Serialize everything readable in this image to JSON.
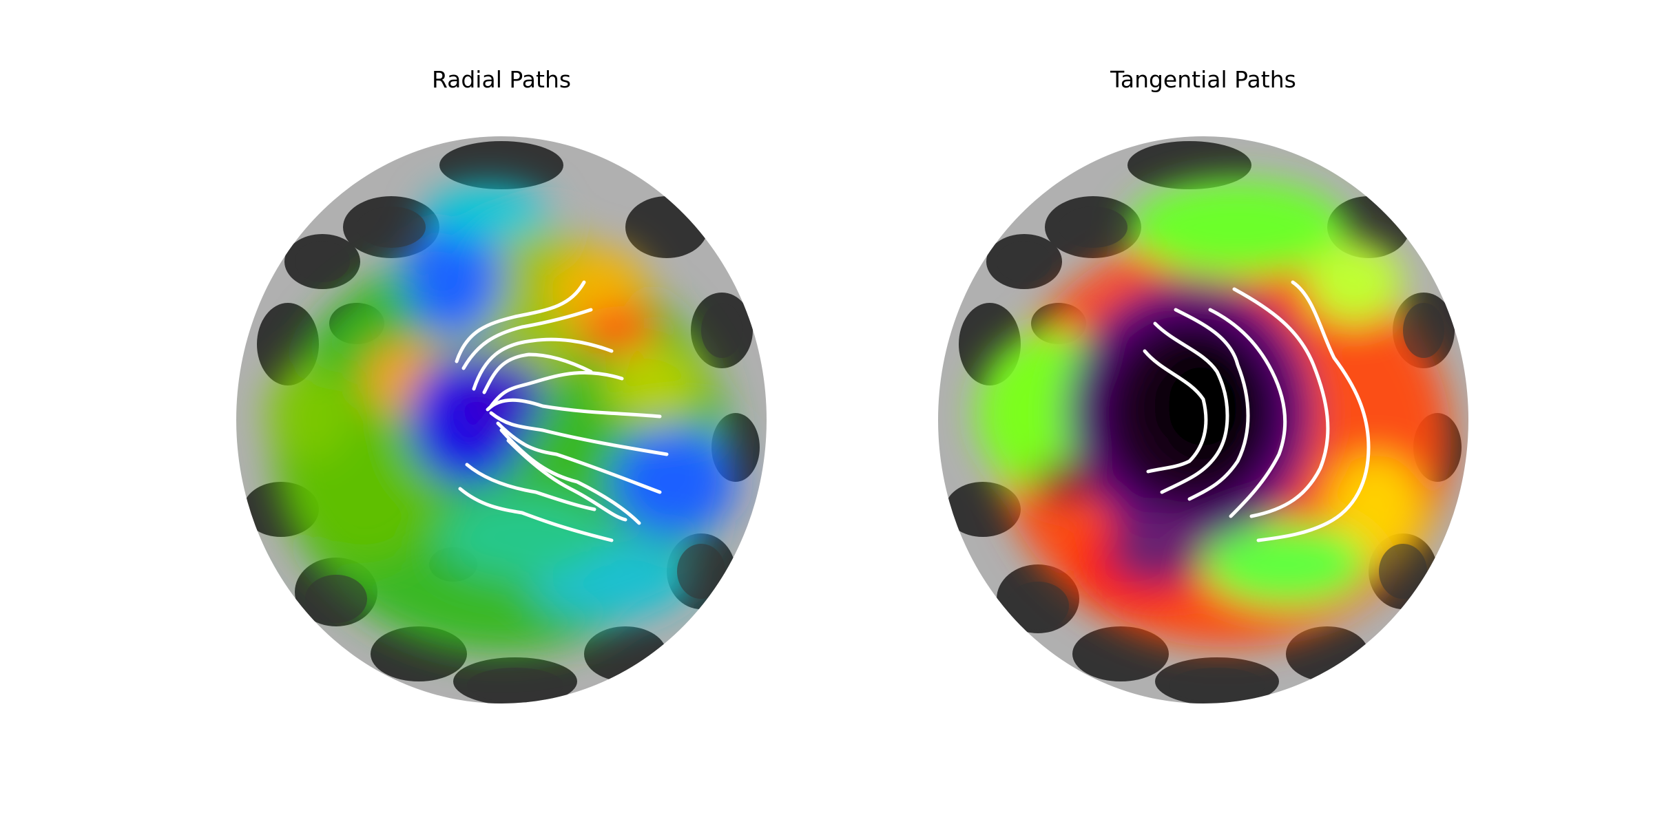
{
  "figure": {
    "panels": [
      {
        "title": "Radial Paths",
        "colormap": "rainbow",
        "background_colors": {
          "light_gray": "#b0b0b0",
          "dark_gray": "#333333"
        },
        "path_color": "#ffffff"
      },
      {
        "title": "Tangential Paths",
        "colormap": "hot-green",
        "background_colors": {
          "light_gray": "#b0b0b0",
          "dark_gray": "#333333"
        },
        "path_color": "#ffffff"
      }
    ]
  }
}
